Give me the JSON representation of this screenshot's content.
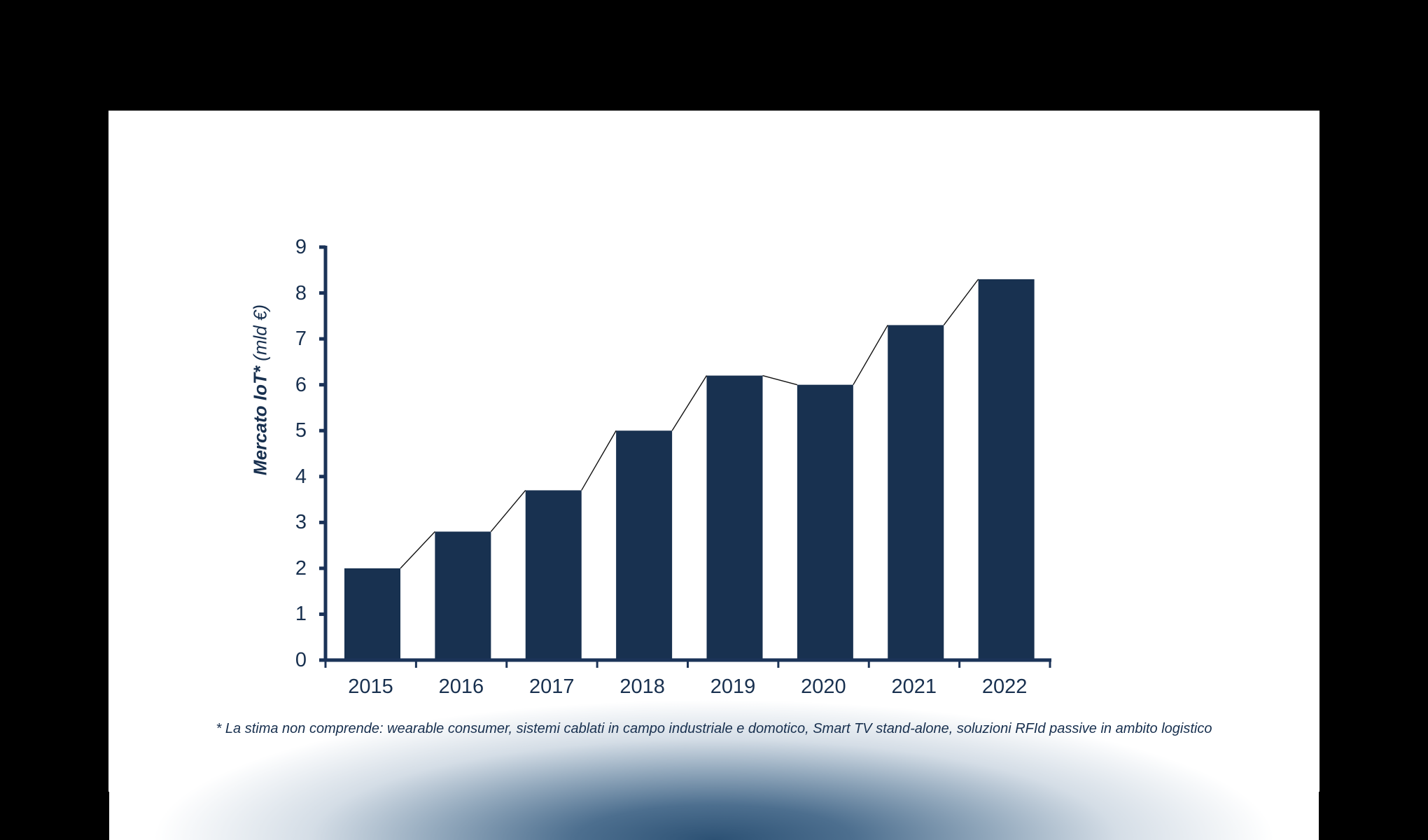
{
  "chart_data": {
    "type": "bar",
    "title": "",
    "xlabel": "",
    "ylabel": "Mercato IoT* (mld €)",
    "ylabel_parts": {
      "bold": "Mercato IoT*",
      "light": " (mld €)"
    },
    "categories": [
      "2015",
      "2016",
      "2017",
      "2018",
      "2019",
      "2020",
      "2021",
      "2022"
    ],
    "values": [
      2.0,
      2.8,
      3.7,
      5.0,
      6.2,
      6.0,
      7.3,
      8.3
    ],
    "ylim": [
      0,
      9
    ],
    "yticks": [
      "0",
      "1",
      "2",
      "3",
      "4",
      "5",
      "6",
      "7",
      "8",
      "9"
    ],
    "grid": false,
    "legend": null,
    "connector_lines": true,
    "bar_color": "#183150",
    "axis_color": "#1b3358"
  },
  "footnote": "* La stima non comprende: wearable consumer, sistemi cablati in campo industriale e domotico, Smart TV stand-alone, soluzioni RFId passive in ambito logistico"
}
